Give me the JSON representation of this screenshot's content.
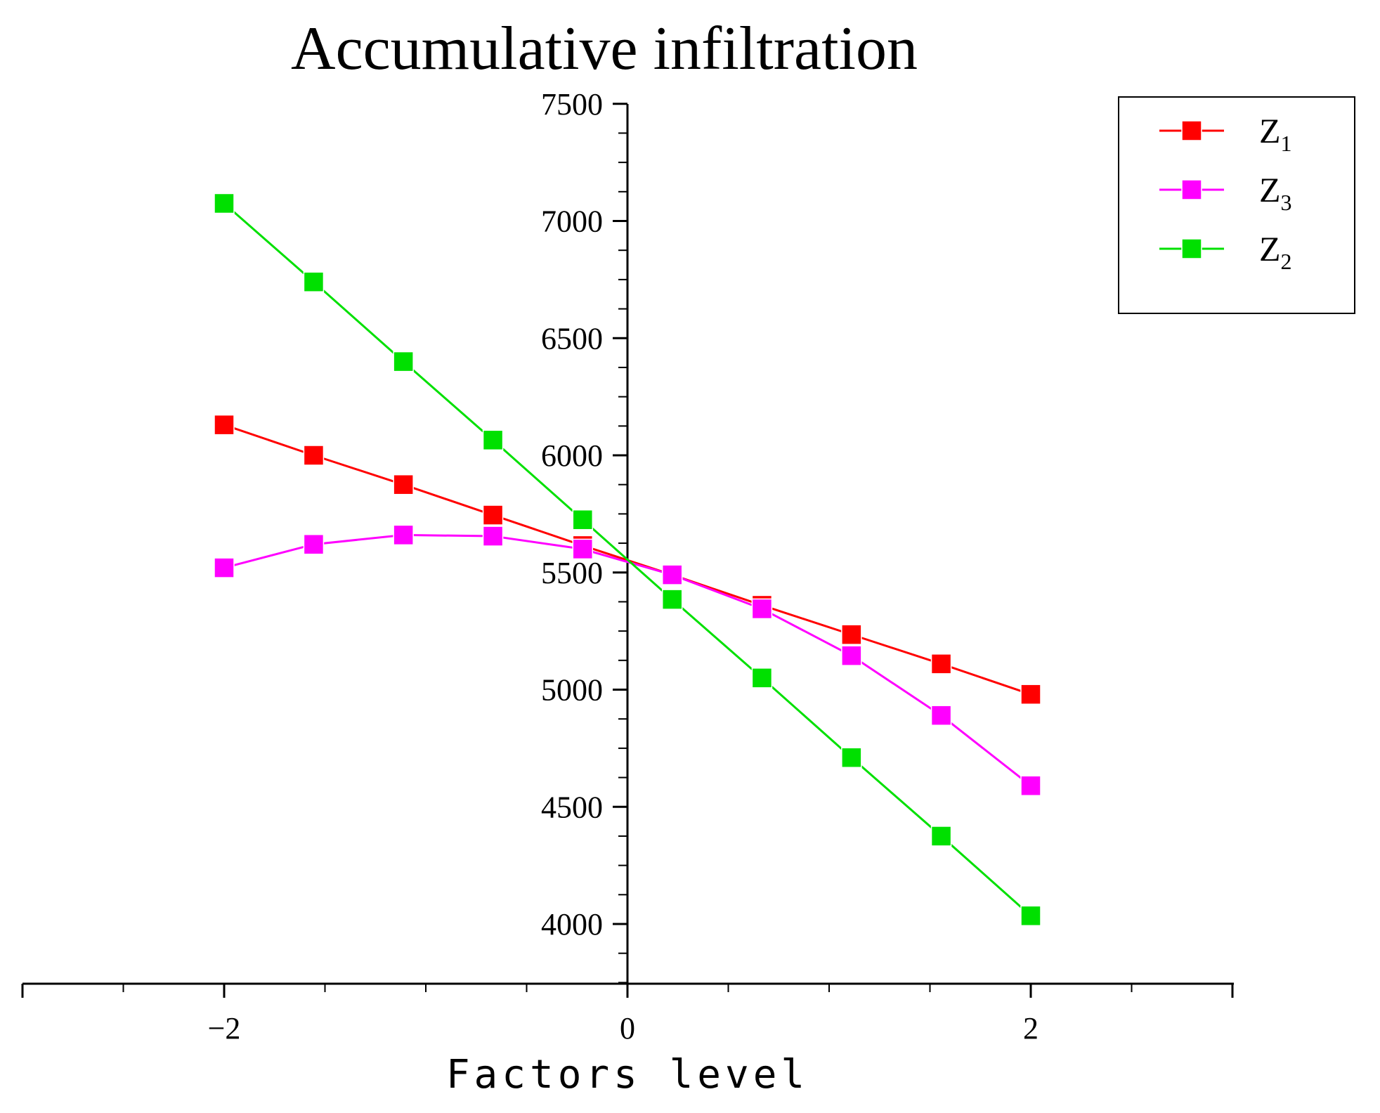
{
  "chart_data": {
    "type": "line",
    "title": "Accumulative infiltration",
    "xlabel": "Factors level",
    "ylabel": "",
    "xlim": [
      -3,
      3
    ],
    "ylim": [
      3750,
      7500
    ],
    "x_ticks": [
      -2,
      0,
      2
    ],
    "x_tick_labels": [
      "−2",
      "0",
      "2"
    ],
    "y_ticks": [
      4000,
      4500,
      5000,
      5500,
      6000,
      6500,
      7000,
      7500
    ],
    "y_tick_labels": [
      "4000",
      "4500",
      "5000",
      "5500",
      "6000",
      "6500",
      "7000",
      "7500"
    ],
    "grid": false,
    "legend_position": "top-right",
    "x": [
      -2,
      -1.556,
      -1.111,
      -0.667,
      -0.222,
      0.222,
      0.667,
      1.111,
      1.556,
      2
    ],
    "series": [
      {
        "name": "Z1",
        "label_main": "Z",
        "label_sub": "1",
        "color": "#ff0000",
        "values": [
          6130,
          6000,
          5875,
          5745,
          5615,
          5490,
          5360,
          5235,
          5110,
          4980
        ]
      },
      {
        "name": "Z3",
        "label_main": "Z",
        "label_sub": "3",
        "color": "#ff00ff",
        "values": [
          5520,
          5620,
          5660,
          5655,
          5600,
          5490,
          5345,
          5145,
          4890,
          4590
        ]
      },
      {
        "name": "Z2",
        "label_main": "Z",
        "label_sub": "2",
        "color": "#00e000",
        "values": [
          7075,
          6740,
          6400,
          6065,
          5725,
          5385,
          5050,
          4710,
          4375,
          4035
        ]
      }
    ]
  }
}
